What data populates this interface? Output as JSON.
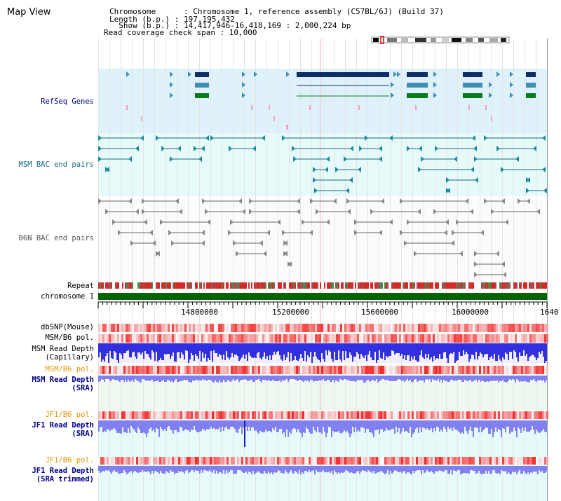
{
  "header": {
    "title": "Map View",
    "info_lines": [
      "Chromosome      : Chromosome 1, reference assembly (C57BL/6J) (Build 37)",
      "Length (b.p.) : 197,195,432",
      "  Show (b.p.) : 14,417,946-16,418,169 : 2,000,224 bp",
      "Read coverage check span : 10,000"
    ]
  },
  "tracks": {
    "refseq": {
      "label": "RefSeq Genes",
      "color": "#00008b"
    },
    "msm_bac": {
      "label": "MSM BAC end pairs",
      "color": "#1a6b80"
    },
    "b6n_bac": {
      "label": "B6N BAC end pairs",
      "color": "#555555"
    },
    "repeat": {
      "label": "Repeat"
    },
    "chromosome": {
      "label": "chromosome 1"
    },
    "dbsnp": {
      "label": "dbSNP(Mouse)"
    },
    "msm_b6_pol_1": {
      "label": "MSM/B6 pol."
    },
    "msm_read_depth_cap": {
      "label": "MSM Read Depth\n(Capillary)"
    },
    "msm_b6_pol_2": {
      "label": "MSM/B6 pol.",
      "color": "#e69500"
    },
    "msm_read_depth_sra": {
      "label": "MSM Read Depth\n(SRA)",
      "color": "#00008b"
    },
    "jf1_b6_pol_1": {
      "label": "JF1/B6 pol.",
      "color": "#e69500"
    },
    "jf1_read_depth_sra": {
      "label": "JF1 Read Depth\n(SRA)",
      "color": "#00008b"
    },
    "jf1_b6_pol_2": {
      "label": "JF1/B6 pol.",
      "color": "#e69500"
    },
    "jf1_read_depth_trimmed": {
      "label": "JF1 Read Depth\n(SRA trimmed)",
      "color": "#00008b"
    }
  },
  "axis": {
    "range": [
      14417946,
      16418169
    ],
    "ticks": [
      "14800000",
      "15200000",
      "15600000",
      "16000000",
      "1640"
    ]
  },
  "colors": {
    "refseq_bg": "#dff2fb",
    "msm_bg": "#e6fafa",
    "gene_dark": "#0d2e66",
    "gene_mid": "#3f8fb5",
    "gene_green": "#0a7a1e",
    "msm_line": "#1a6b80",
    "b6n_line": "#666666",
    "chromosome_bar": "#006400",
    "pol_red": "#f05050",
    "depth_blue": "#3030e0",
    "depth_light": "#8080f0"
  }
}
